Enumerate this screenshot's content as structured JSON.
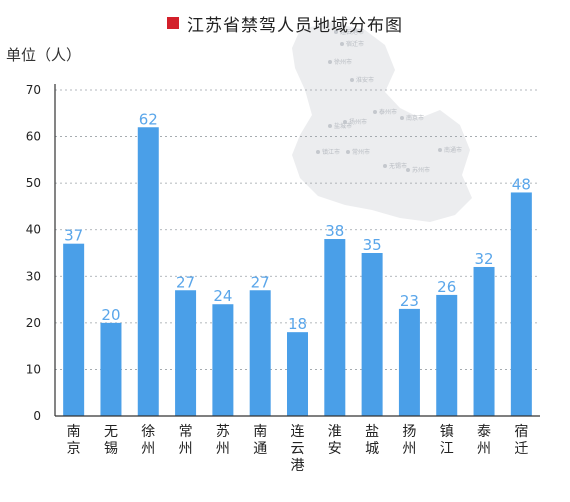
{
  "chart_data": {
    "type": "bar",
    "title": "江苏省禁驾人员地域分布图",
    "ylabel": "单位（人）",
    "xlabel": "",
    "ylim": [
      0,
      70
    ],
    "yticks": [
      0,
      10,
      20,
      30,
      40,
      50,
      60,
      70
    ],
    "grid": true,
    "categories": [
      "南京",
      "无锡",
      "徐州",
      "常州",
      "苏州",
      "南通",
      "连云港",
      "淮安",
      "盐城",
      "扬州",
      "镇江",
      "泰州",
      "宿迁"
    ],
    "values": [
      37,
      20,
      62,
      27,
      24,
      27,
      18,
      38,
      35,
      23,
      26,
      32,
      48
    ]
  },
  "colors": {
    "bar": "#4a9fe8",
    "value_label": "#5aa6ea",
    "title_square": "#d3202a",
    "map_background": "#ecedef"
  },
  "background_map": {
    "labels": [
      "连云港市",
      "宿迁市",
      "徐州市",
      "淮安市",
      "盐城市",
      "扬州市",
      "泰州市",
      "南京市",
      "镇江市",
      "常州市",
      "无锡市",
      "苏州市",
      "南通市"
    ]
  }
}
